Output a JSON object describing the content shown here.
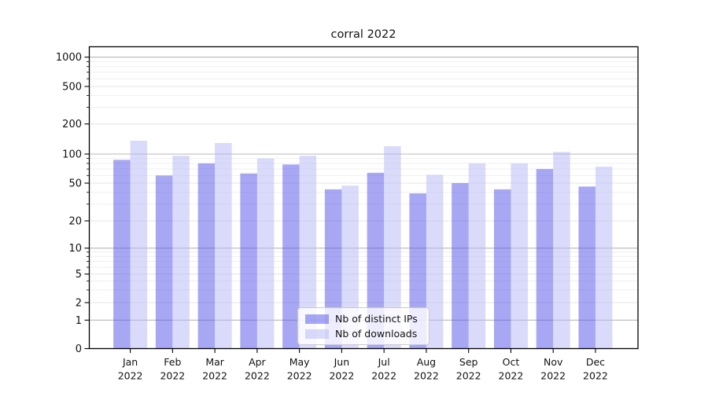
{
  "chart_data": {
    "type": "bar",
    "title": "corral 2022",
    "categories": [
      "Jan",
      "Feb",
      "Mar",
      "Apr",
      "May",
      "Jun",
      "Jul",
      "Aug",
      "Sep",
      "Oct",
      "Nov",
      "Dec"
    ],
    "category_year": "2022",
    "series": [
      {
        "name": "Nb of distinct IPs",
        "color": "rgba(79,79,231,0.5)",
        "values": [
          87,
          60,
          80,
          63,
          78,
          43,
          64,
          39,
          50,
          43,
          70,
          46
        ]
      },
      {
        "name": "Nb of downloads",
        "color": "rgba(181,181,245,0.5)",
        "values": [
          136,
          96,
          129,
          90,
          96,
          47,
          120,
          61,
          80,
          80,
          105,
          74
        ]
      }
    ],
    "yscale": "symlog",
    "ylim": [
      0,
      1300
    ],
    "y_ticks": [
      0,
      1,
      2,
      5,
      10,
      20,
      50,
      100,
      200,
      500,
      1000
    ],
    "grid": true,
    "legend_position": "lower center"
  },
  "colors": {
    "background": "#ffffff",
    "bar_distinct_ips": "rgba(79,79,231,0.5)",
    "bar_downloads": "rgba(181,181,245,0.5)",
    "grid_major": "#b8b8b8",
    "grid_labeled_minor": "#e4e4e4",
    "grid_minor": "#efefef",
    "spine": "#000000",
    "text": "#111111"
  }
}
